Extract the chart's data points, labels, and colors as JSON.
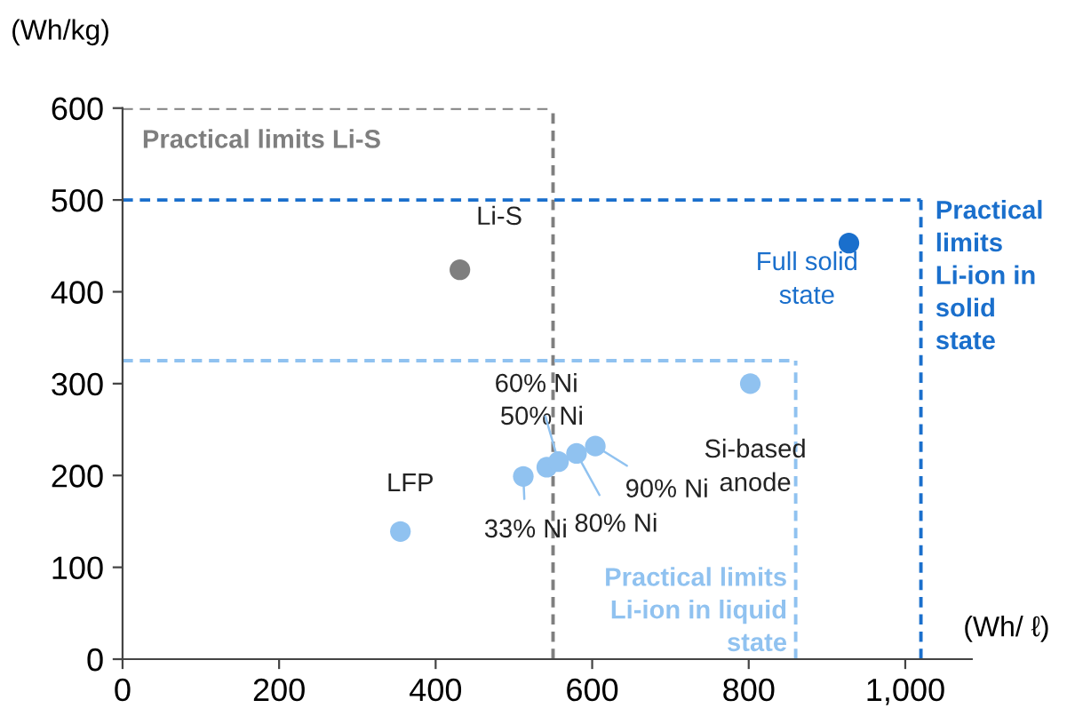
{
  "chart_data": {
    "type": "scatter",
    "ylabel": "(Wh/kg)",
    "xlabel": "(Wh/ ℓ)",
    "x": [
      355,
      431,
      512,
      542,
      557,
      580,
      604,
      802,
      928
    ],
    "series": [
      {
        "values": [
          139,
          424,
          199,
          209,
          215,
          224,
          232,
          300,
          453
        ],
        "colors": [
          "#90c2f0",
          "#7f7f7f",
          "#90c2f0",
          "#90c2f0",
          "#90c2f0",
          "#90c2f0",
          "#90c2f0",
          "#90c2f0",
          "#1a6fcc"
        ]
      }
    ],
    "annotations": [
      {
        "text": "LFP",
        "x": 355,
        "y": 139
      },
      {
        "text": "Li-S",
        "x": 431,
        "y": 424
      },
      {
        "text": "33% Ni",
        "x": 512,
        "y": 199
      },
      {
        "text": "50% Ni",
        "x": 542,
        "y": 209
      },
      {
        "text": "60% Ni",
        "x": 557,
        "y": 215
      },
      {
        "text": "80% Ni",
        "x": 580,
        "y": 224
      },
      {
        "text": "90% Ni",
        "x": 604,
        "y": 232
      },
      {
        "text": "Si-based\nanode",
        "x": 802,
        "y": 300
      },
      {
        "text": "Full solid\nstate",
        "x": 928,
        "y": 453
      }
    ],
    "ref_lines": [
      {
        "axis": "x",
        "value": 550,
        "label": "Practical limits Li-S",
        "color": "#7f7f7f",
        "line_style": "dashed"
      },
      {
        "axis": "y",
        "value": 600,
        "color": "#7f7f7f",
        "line_style": "dashed"
      },
      {
        "axis": "x",
        "value": 1020,
        "label": "Practical\nlimits\nLi-ion in\nsolid\nstate",
        "color": "#1a6fcc",
        "line_style": "dashed"
      },
      {
        "axis": "y",
        "value": 500,
        "color": "#1a6fcc",
        "line_style": "dashed"
      },
      {
        "axis": "x",
        "value": 860,
        "label": "Practical limits\nLi-ion in liquid\nstate",
        "color": "#90c2f0",
        "line_style": "dashed"
      },
      {
        "axis": "y",
        "value": 325,
        "color": "#90c2f0",
        "line_style": "dashed"
      }
    ],
    "xlim": [
      0,
      1085
    ],
    "ylim": [
      0,
      600
    ],
    "xticks": [
      0,
      200,
      400,
      600,
      800,
      {
        "value": 1000,
        "label": "1,000"
      }
    ],
    "yticks": [
      0,
      100,
      200,
      300,
      400,
      500,
      600
    ],
    "grid": false,
    "legend": false,
    "marker": "circle"
  }
}
